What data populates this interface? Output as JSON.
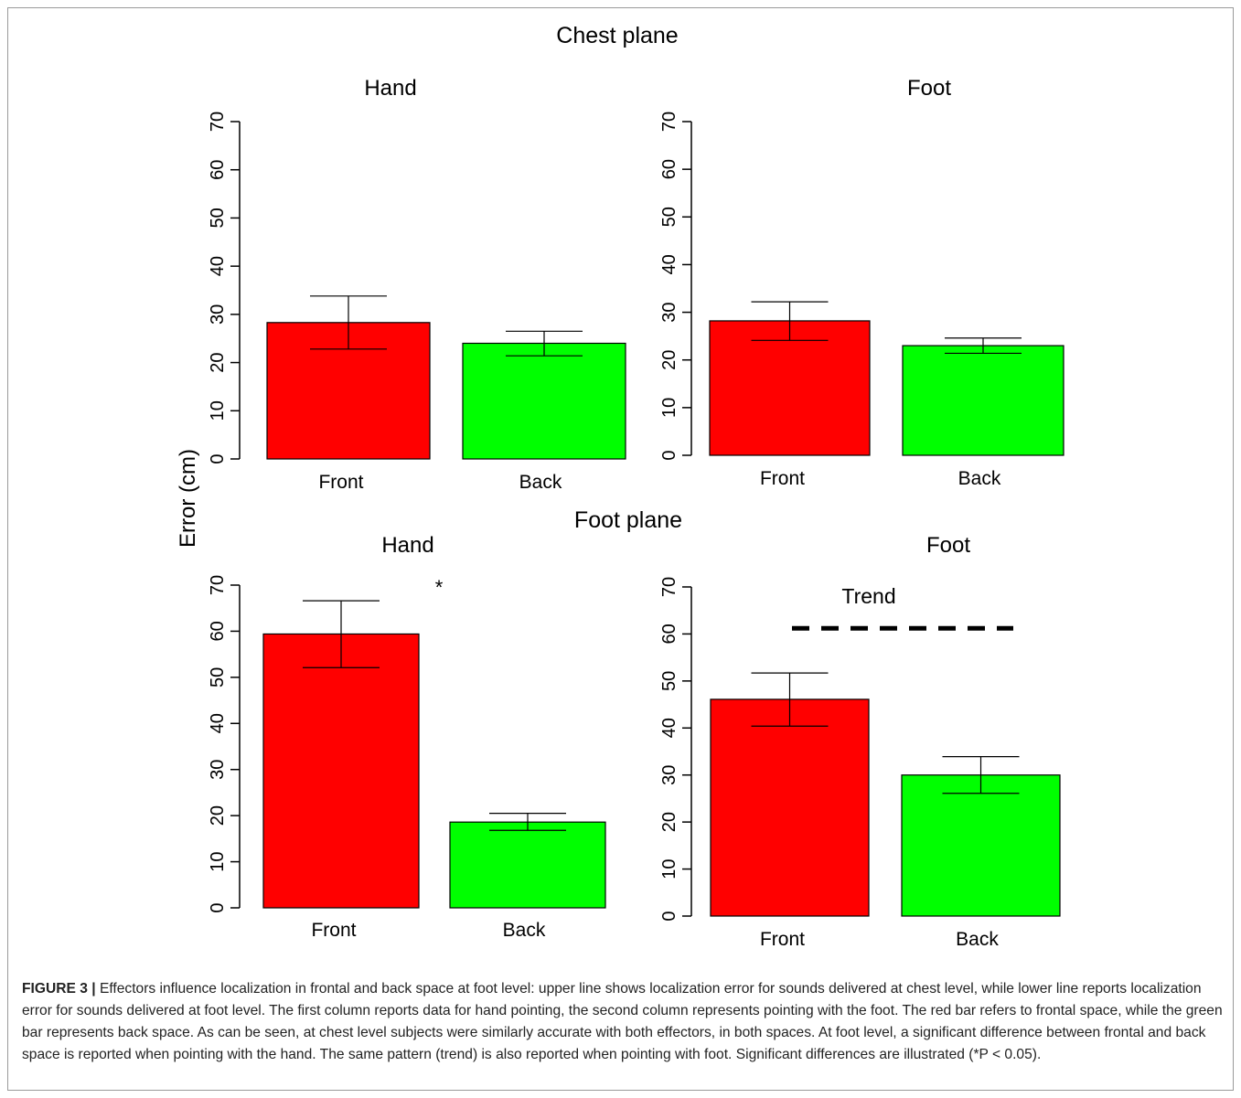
{
  "figure": {
    "top_title": "Chest plane",
    "middle_title": "Foot plane",
    "ylabel": "Error (cm)",
    "caption_label": "FIGURE 3 |",
    "caption_text": "Effectors influence localization in frontal and back space at foot level: upper line shows localization error for sounds delivered at chest level, while lower line reports localization error for sounds delivered at foot level. The first column reports data for hand pointing, the second column represents pointing with the foot. The red bar refers to frontal space, while the green bar represents back space. As can be seen, at chest level subjects were similarly accurate with both effectors, in both spaces. At foot level, a significant difference between frontal and back space is reported when pointing with the hand. The same pattern (trend) is also reported when pointing with foot. Significant differences are illustrated (*P < 0.05)."
  },
  "colors": {
    "front": "#ff0000",
    "back": "#00ff00",
    "axis": "#000000"
  },
  "chart_data": [
    {
      "type": "bar",
      "title": "Hand",
      "group": "Chest plane",
      "categories": [
        "Front",
        "Back"
      ],
      "values": [
        28.3,
        24.0
      ],
      "error_low": [
        22.8,
        21.4
      ],
      "error_high": [
        33.8,
        26.5
      ],
      "ylim": [
        0,
        70
      ],
      "yticks": [
        0,
        10,
        20,
        30,
        40,
        50,
        60,
        70
      ],
      "annotation": ""
    },
    {
      "type": "bar",
      "title": "Foot",
      "group": "Chest plane",
      "categories": [
        "Front",
        "Back"
      ],
      "values": [
        28.2,
        23.0
      ],
      "error_low": [
        24.1,
        21.4
      ],
      "error_high": [
        32.2,
        24.6
      ],
      "ylim": [
        0,
        70
      ],
      "yticks": [
        0,
        10,
        20,
        30,
        40,
        50,
        60,
        70
      ],
      "annotation": ""
    },
    {
      "type": "bar",
      "title": "Hand",
      "group": "Foot plane",
      "categories": [
        "Front",
        "Back"
      ],
      "values": [
        59.4,
        18.6
      ],
      "error_low": [
        52.1,
        16.8
      ],
      "error_high": [
        66.6,
        20.5
      ],
      "ylim": [
        0,
        70
      ],
      "yticks": [
        0,
        10,
        20,
        30,
        40,
        50,
        60,
        70
      ],
      "annotation": "*"
    },
    {
      "type": "bar",
      "title": "Foot",
      "group": "Foot plane",
      "categories": [
        "Front",
        "Back"
      ],
      "values": [
        46.1,
        30.0
      ],
      "error_low": [
        40.4,
        26.1
      ],
      "error_high": [
        51.7,
        33.9
      ],
      "ylim": [
        0,
        70
      ],
      "yticks": [
        0,
        10,
        20,
        30,
        40,
        50,
        60,
        70
      ],
      "annotation": "Trend",
      "trend_line_y": 61.2
    }
  ]
}
